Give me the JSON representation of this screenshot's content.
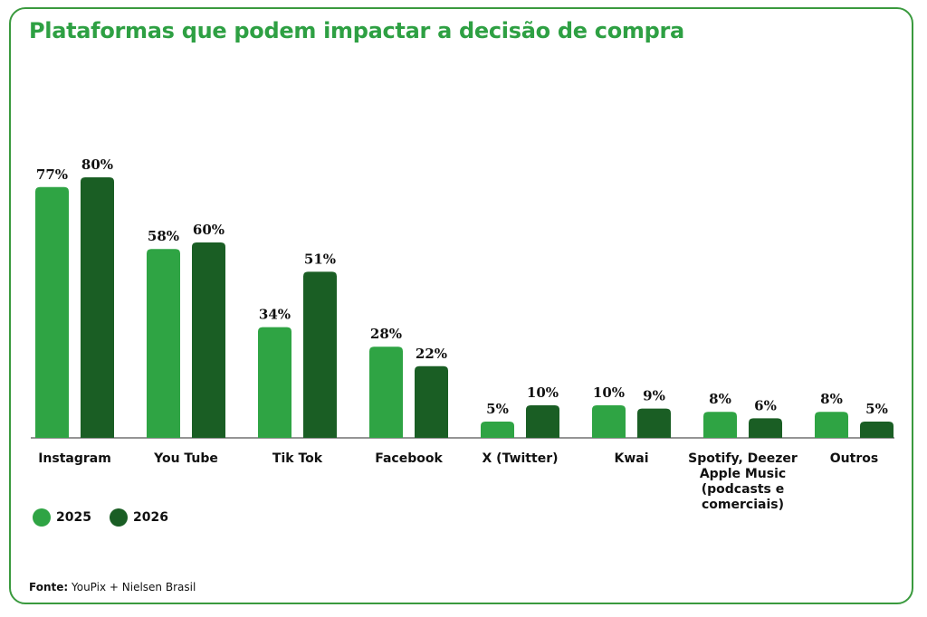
{
  "title": "Plataformas que podem impactar a decisão de compra",
  "source": {
    "label": "Fonte:",
    "text": " YouPix + Nielsen Brasil"
  },
  "colors": {
    "accent": "#2ea043",
    "series_2025": "#2fa444",
    "series_2026": "#1a5e24",
    "border": "#3a9a3e"
  },
  "chart_data": {
    "type": "bar",
    "title": "Plataformas que podem impactar a decisão de compra",
    "categories": [
      [
        "Instagram"
      ],
      [
        "You Tube"
      ],
      [
        "Tik Tok"
      ],
      [
        "Facebook"
      ],
      [
        "X (Twitter)"
      ],
      [
        "Kwai"
      ],
      [
        "Spotify, Deezer",
        "Apple Music",
        "(podcasts e",
        "comerciais)"
      ],
      [
        "Outros"
      ]
    ],
    "series": [
      {
        "name": "2025",
        "color": "#2fa444",
        "values": [
          77,
          58,
          34,
          28,
          5,
          10,
          8,
          8
        ],
        "labels": [
          "77%",
          "58%",
          "34%",
          "28%",
          "5%",
          "10%",
          "8%",
          "8%"
        ]
      },
      {
        "name": "2026",
        "color": "#1a5e24",
        "values": [
          80,
          60,
          51,
          22,
          10,
          9,
          6,
          5
        ],
        "labels": [
          "80%",
          "60%",
          "51%",
          "22%",
          "10%",
          "9%",
          "6%",
          "5%"
        ]
      }
    ],
    "xlabel": "",
    "ylabel": "",
    "ylim": [
      0,
      100
    ],
    "grid": false,
    "legend": "bottom-left"
  }
}
